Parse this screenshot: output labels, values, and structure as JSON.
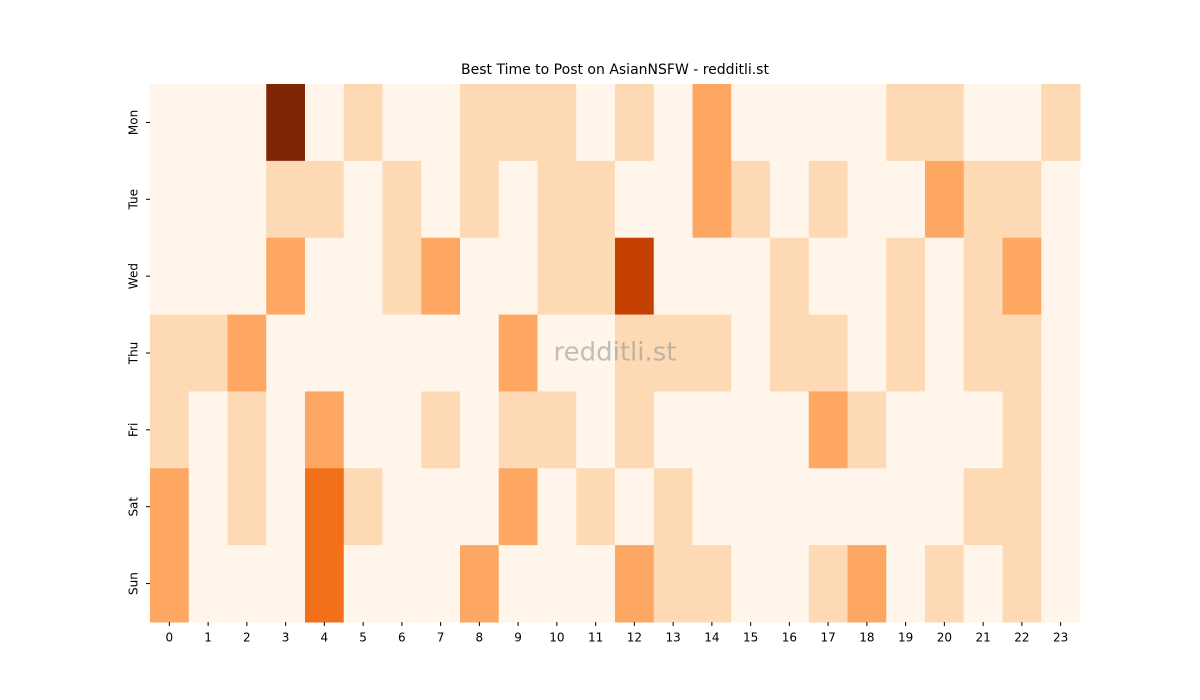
{
  "chart_data": {
    "type": "heatmap",
    "title": "Best Time to Post on AsianNSFW - redditli.st",
    "watermark": "redditli.st",
    "x": [
      "0",
      "1",
      "2",
      "3",
      "4",
      "5",
      "6",
      "7",
      "8",
      "9",
      "10",
      "11",
      "12",
      "13",
      "14",
      "15",
      "16",
      "17",
      "18",
      "19",
      "20",
      "21",
      "22",
      "23"
    ],
    "y": [
      "Mon",
      "Tue",
      "Wed",
      "Thu",
      "Fri",
      "Sat",
      "Sun"
    ],
    "values": [
      [
        0,
        0,
        0,
        5,
        0,
        1,
        0,
        0,
        1,
        1,
        1,
        0,
        1,
        0,
        2,
        0,
        0,
        0,
        0,
        1,
        1,
        0,
        0,
        1
      ],
      [
        0,
        0,
        0,
        1,
        1,
        0,
        1,
        0,
        1,
        0,
        1,
        1,
        0,
        0,
        2,
        1,
        0,
        1,
        0,
        0,
        2,
        1,
        1,
        0
      ],
      [
        0,
        0,
        0,
        2,
        0,
        0,
        1,
        2,
        0,
        0,
        1,
        1,
        4,
        0,
        0,
        0,
        1,
        0,
        0,
        1,
        0,
        1,
        2,
        0
      ],
      [
        1,
        1,
        2,
        0,
        0,
        0,
        0,
        0,
        0,
        2,
        0,
        0,
        1,
        1,
        1,
        0,
        1,
        1,
        0,
        1,
        0,
        1,
        1,
        0
      ],
      [
        1,
        0,
        1,
        0,
        2,
        0,
        0,
        1,
        0,
        1,
        1,
        0,
        1,
        0,
        0,
        0,
        0,
        2,
        1,
        0,
        0,
        0,
        1,
        0
      ],
      [
        2,
        0,
        1,
        0,
        3,
        1,
        0,
        0,
        0,
        2,
        0,
        1,
        0,
        1,
        0,
        0,
        0,
        0,
        0,
        0,
        0,
        1,
        1,
        0
      ],
      [
        2,
        0,
        0,
        0,
        3,
        0,
        0,
        0,
        2,
        0,
        0,
        0,
        2,
        1,
        1,
        0,
        0,
        1,
        2,
        0,
        1,
        0,
        1,
        0
      ]
    ],
    "zlim": [
      0,
      5
    ],
    "colorscale": [
      "#fff5eb",
      "#fdd9b4",
      "#fda762",
      "#f3701b",
      "#c54102",
      "#7f2704"
    ]
  }
}
